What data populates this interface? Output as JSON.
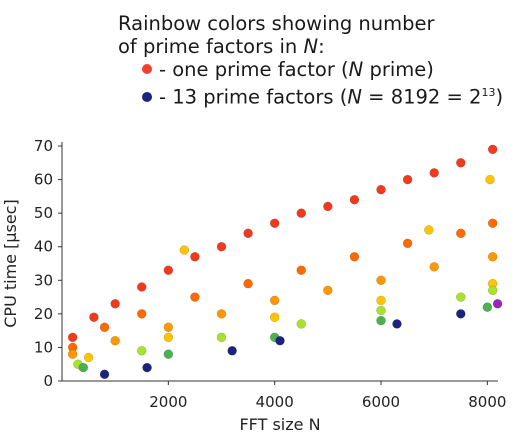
{
  "legend": {
    "title_line1": "Rainbow colors showing number",
    "title_line2_prefix": "of prime factors in ",
    "title_line2_var": "N",
    "title_line2_suffix": ":",
    "entry1": {
      "color": "#f04030",
      "prefix": "- one prime factor (",
      "var": "N",
      "suffix": " prime)"
    },
    "entry2": {
      "color": "#1a237e",
      "prefix": "- 13 prime factors (",
      "var": "N",
      "equals": " = 8192 = 2",
      "exp": "13",
      "suffix": ")"
    }
  },
  "chart_data": {
    "type": "scatter",
    "xlabel": "FFT size N",
    "ylabel": "CPU time [µsec]",
    "xlim": [
      0,
      8200
    ],
    "ylim": [
      0,
      70
    ],
    "xticks": [
      2000,
      4000,
      6000,
      8000
    ],
    "yticks": [
      0,
      10,
      20,
      30,
      40,
      50,
      60,
      70
    ],
    "color_scale": [
      "#f03a1e",
      "#ff6a00",
      "#ff9800",
      "#ffc400",
      "#e6e600",
      "#a6e22e",
      "#4caf50",
      "#1a237e"
    ],
    "color_meaning": "number of prime factors of N, from 1 (red) to 13 (dark blue)",
    "series": [
      {
        "color": "#f03a1e",
        "points": [
          [
            200,
            13
          ],
          [
            600,
            19
          ],
          [
            1000,
            23
          ],
          [
            1500,
            28
          ],
          [
            2000,
            33
          ],
          [
            2500,
            37
          ],
          [
            3000,
            40
          ],
          [
            3500,
            44
          ],
          [
            4000,
            47
          ],
          [
            4500,
            50
          ],
          [
            5000,
            52
          ],
          [
            5500,
            54
          ],
          [
            6000,
            57
          ],
          [
            6500,
            60
          ],
          [
            7000,
            62
          ],
          [
            7500,
            65
          ],
          [
            8100,
            69
          ]
        ]
      },
      {
        "color": "#ff6a00",
        "points": [
          [
            200,
            10
          ],
          [
            800,
            16
          ],
          [
            1500,
            20
          ],
          [
            2500,
            25
          ],
          [
            3500,
            29
          ],
          [
            4500,
            33
          ],
          [
            5500,
            37
          ],
          [
            6500,
            41
          ],
          [
            7500,
            44
          ],
          [
            8100,
            47
          ]
        ]
      },
      {
        "color": "#ff9800",
        "points": [
          [
            200,
            8
          ],
          [
            1000,
            12
          ],
          [
            2000,
            16
          ],
          [
            3000,
            20
          ],
          [
            4000,
            24
          ],
          [
            5000,
            27
          ],
          [
            6000,
            30
          ],
          [
            7000,
            34
          ],
          [
            8100,
            37
          ]
        ]
      },
      {
        "color": "#ffc400",
        "points": [
          [
            2300,
            39
          ],
          [
            6900,
            45
          ],
          [
            8050,
            60
          ],
          [
            500,
            7
          ],
          [
            2000,
            13
          ],
          [
            4000,
            19
          ],
          [
            6000,
            24
          ],
          [
            8100,
            29
          ]
        ]
      },
      {
        "color": "#a6e22e",
        "points": [
          [
            300,
            5
          ],
          [
            1500,
            9
          ],
          [
            3000,
            13
          ],
          [
            4500,
            17
          ],
          [
            6000,
            21
          ],
          [
            7500,
            25
          ],
          [
            8100,
            27
          ]
        ]
      },
      {
        "color": "#4caf50",
        "points": [
          [
            400,
            4
          ],
          [
            2000,
            8
          ],
          [
            4000,
            13
          ],
          [
            6000,
            18
          ],
          [
            8000,
            22
          ]
        ]
      },
      {
        "color": "#1a237e",
        "points": [
          [
            800,
            2
          ],
          [
            1600,
            4
          ],
          [
            3200,
            9
          ],
          [
            4100,
            12
          ],
          [
            6300,
            17
          ],
          [
            7500,
            20
          ]
        ]
      },
      {
        "color": "#9c27b0",
        "points": [
          [
            8192,
            23
          ]
        ]
      }
    ]
  }
}
